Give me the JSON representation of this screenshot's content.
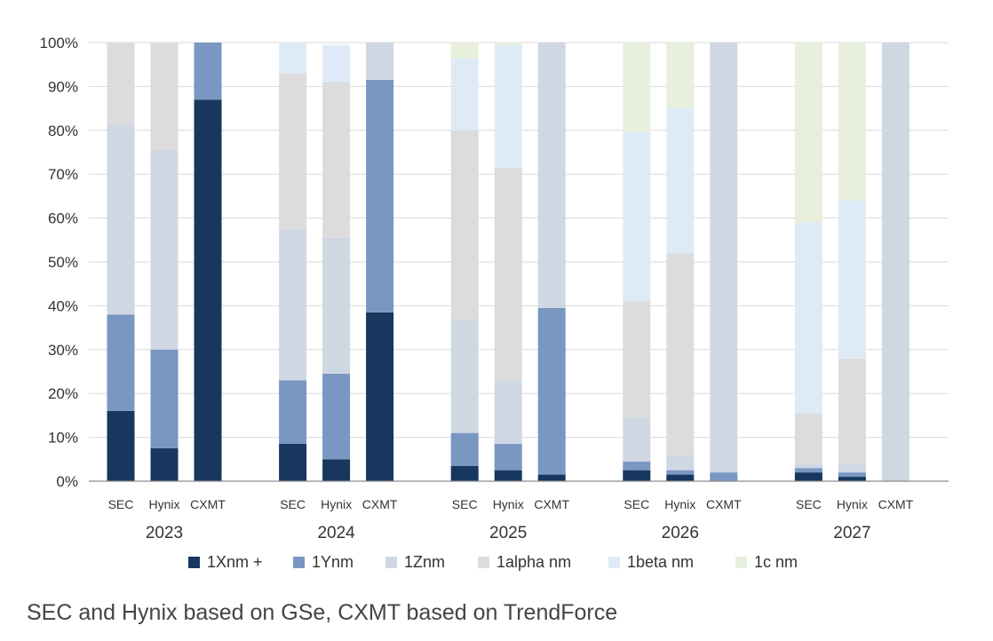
{
  "chart_data": {
    "type": "bar",
    "stacked": true,
    "percent": true,
    "ylim": [
      0,
      100
    ],
    "y_ticks": [
      "0%",
      "10%",
      "20%",
      "30%",
      "40%",
      "50%",
      "60%",
      "70%",
      "80%",
      "90%",
      "100%"
    ],
    "grid": true,
    "legend_position": "bottom",
    "groups": [
      "2023",
      "2024",
      "2025",
      "2026",
      "2027"
    ],
    "companies": [
      "SEC",
      "Hynix",
      "CXMT"
    ],
    "series": [
      {
        "name": "1Xnm +",
        "color": "#17375e",
        "values": [
          [
            16,
            7.5,
            87
          ],
          [
            8.5,
            5,
            38.5
          ],
          [
            3.5,
            2.5,
            1.5
          ],
          [
            2.5,
            1.5,
            0
          ],
          [
            2,
            1,
            0
          ]
        ]
      },
      {
        "name": "1Ynm",
        "color": "#7a96c2",
        "values": [
          [
            22,
            22.5,
            13
          ],
          [
            14.5,
            19.5,
            53
          ],
          [
            7.5,
            6,
            38
          ],
          [
            2,
            1,
            2
          ],
          [
            1,
            1,
            0
          ]
        ]
      },
      {
        "name": "1Znm",
        "color": "#cfd7e3",
        "values": [
          [
            43.5,
            45.5,
            0
          ],
          [
            34.5,
            31,
            8.5
          ],
          [
            26,
            14.5,
            60.5
          ],
          [
            10,
            3.5,
            98
          ],
          [
            1,
            2,
            100
          ]
        ]
      },
      {
        "name": "1alpha nm",
        "color": "#dcdcdc",
        "values": [
          [
            18.5,
            24.5,
            0
          ],
          [
            35.5,
            35.5,
            0
          ],
          [
            43,
            48.5,
            0
          ],
          [
            26.5,
            46,
            0
          ],
          [
            11.5,
            24,
            0
          ]
        ]
      },
      {
        "name": "1beta nm",
        "color": "#deebf7",
        "values": [
          [
            0,
            0,
            0
          ],
          [
            7,
            8.5,
            0
          ],
          [
            16.5,
            28,
            0
          ],
          [
            38.5,
            33,
            0
          ],
          [
            43.5,
            36,
            0
          ]
        ]
      },
      {
        "name": "1c nm",
        "color": "#e8f0dd",
        "values": [
          [
            0,
            0,
            0
          ],
          [
            0,
            0,
            0
          ],
          [
            3.5,
            0.5,
            0
          ],
          [
            20.5,
            15,
            0
          ],
          [
            41,
            36,
            0
          ]
        ]
      }
    ]
  },
  "caption": "SEC and Hynix based on GSe, CXMT based on TrendForce"
}
